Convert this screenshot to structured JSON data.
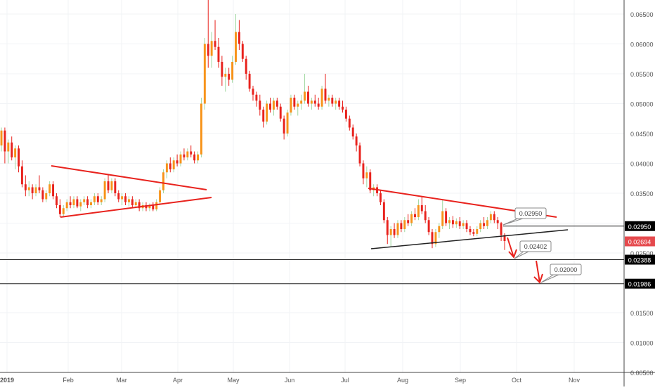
{
  "chart_data": {
    "type": "candlestick",
    "x_ticks": [
      "2019",
      "Feb",
      "Mar",
      "Apr",
      "May",
      "Jun",
      "Jul",
      "Aug",
      "Sep",
      "Oct",
      "Nov"
    ],
    "y_ticks": [
      "0.06500",
      "0.06000",
      "0.05500",
      "0.05000",
      "0.04500",
      "0.04000",
      "0.03500",
      "0.03000",
      "0.02500",
      "0.02000",
      "0.01500",
      "0.01000",
      "0.00500"
    ],
    "ylim": [
      0.0045,
      0.0678
    ],
    "price_tags": [
      {
        "label": "0.02950",
        "value": 0.0295,
        "bg": "#000000",
        "fg": "#ffffff"
      },
      {
        "label": "0.02694",
        "value": 0.02694,
        "bg": "#e5494d",
        "fg": "#ffffff"
      },
      {
        "label": "0.02388",
        "value": 0.02388,
        "bg": "#000000",
        "fg": "#ffffff"
      },
      {
        "label": "0.01986",
        "value": 0.01986,
        "bg": "#000000",
        "fg": "#ffffff"
      }
    ],
    "callouts": [
      {
        "label": "0.02950",
        "value": 0.0295
      },
      {
        "label": "0.02402",
        "value": 0.02402
      },
      {
        "label": "0.02000",
        "value": 0.02
      }
    ],
    "horizontal_levels": [
      0.0295,
      0.02388,
      0.01986
    ],
    "candles": [
      [
        0.043,
        0.046,
        0.042,
        0.0455
      ],
      [
        0.0455,
        0.046,
        0.04,
        0.042
      ],
      [
        0.042,
        0.044,
        0.04,
        0.0435
      ],
      [
        0.0435,
        0.0445,
        0.0405,
        0.041
      ],
      [
        0.041,
        0.043,
        0.039,
        0.0425
      ],
      [
        0.0425,
        0.043,
        0.0385,
        0.0395
      ],
      [
        0.0395,
        0.0405,
        0.036,
        0.0365
      ],
      [
        0.0365,
        0.038,
        0.0345,
        0.0355
      ],
      [
        0.0355,
        0.037,
        0.0345,
        0.036
      ],
      [
        0.036,
        0.0365,
        0.034,
        0.035
      ],
      [
        0.035,
        0.0365,
        0.0345,
        0.036
      ],
      [
        0.036,
        0.038,
        0.035,
        0.0355
      ],
      [
        0.0355,
        0.036,
        0.0335,
        0.034
      ],
      [
        0.034,
        0.0355,
        0.0335,
        0.035
      ],
      [
        0.035,
        0.037,
        0.0345,
        0.0365
      ],
      [
        0.0365,
        0.037,
        0.034,
        0.0345
      ],
      [
        0.0345,
        0.035,
        0.0325,
        0.033
      ],
      [
        0.033,
        0.034,
        0.031,
        0.0315
      ],
      [
        0.0315,
        0.033,
        0.031,
        0.0325
      ],
      [
        0.0325,
        0.034,
        0.032,
        0.0335
      ],
      [
        0.0335,
        0.0345,
        0.0325,
        0.033
      ],
      [
        0.033,
        0.0345,
        0.0325,
        0.034
      ],
      [
        0.034,
        0.0345,
        0.0325,
        0.0328
      ],
      [
        0.0328,
        0.034,
        0.032,
        0.0335
      ],
      [
        0.0335,
        0.0345,
        0.033,
        0.034
      ],
      [
        0.034,
        0.0345,
        0.0325,
        0.033
      ],
      [
        0.033,
        0.034,
        0.0325,
        0.0335
      ],
      [
        0.0335,
        0.035,
        0.033,
        0.0345
      ],
      [
        0.0345,
        0.035,
        0.033,
        0.0335
      ],
      [
        0.0335,
        0.0345,
        0.033,
        0.034
      ],
      [
        0.034,
        0.0375,
        0.0335,
        0.037
      ],
      [
        0.037,
        0.038,
        0.035,
        0.0355
      ],
      [
        0.0355,
        0.0375,
        0.035,
        0.037
      ],
      [
        0.037,
        0.0375,
        0.0345,
        0.035
      ],
      [
        0.035,
        0.0355,
        0.0335,
        0.034
      ],
      [
        0.034,
        0.035,
        0.033,
        0.0345
      ],
      [
        0.0345,
        0.035,
        0.033,
        0.0335
      ],
      [
        0.0335,
        0.0345,
        0.0328,
        0.034
      ],
      [
        0.034,
        0.0345,
        0.0325,
        0.033
      ],
      [
        0.033,
        0.034,
        0.0325,
        0.0335
      ],
      [
        0.0335,
        0.034,
        0.032,
        0.0325
      ],
      [
        0.0325,
        0.0335,
        0.032,
        0.033
      ],
      [
        0.033,
        0.0335,
        0.032,
        0.0325
      ],
      [
        0.0325,
        0.0333,
        0.032,
        0.033
      ],
      [
        0.033,
        0.0335,
        0.032,
        0.0323
      ],
      [
        0.0323,
        0.034,
        0.032,
        0.0335
      ],
      [
        0.0335,
        0.036,
        0.033,
        0.0355
      ],
      [
        0.0355,
        0.039,
        0.035,
        0.0385
      ],
      [
        0.0385,
        0.0405,
        0.0375,
        0.04
      ],
      [
        0.04,
        0.041,
        0.0385,
        0.039
      ],
      [
        0.039,
        0.041,
        0.0385,
        0.0405
      ],
      [
        0.0405,
        0.0415,
        0.0395,
        0.04
      ],
      [
        0.04,
        0.042,
        0.0395,
        0.0415
      ],
      [
        0.0415,
        0.0425,
        0.0405,
        0.041
      ],
      [
        0.041,
        0.0425,
        0.0405,
        0.042
      ],
      [
        0.042,
        0.043,
        0.041,
        0.0415
      ],
      [
        0.0415,
        0.042,
        0.04,
        0.0405
      ],
      [
        0.0405,
        0.042,
        0.04,
        0.0415
      ],
      [
        0.0415,
        0.051,
        0.041,
        0.05
      ],
      [
        0.05,
        0.061,
        0.049,
        0.06
      ],
      [
        0.06,
        0.068,
        0.056,
        0.058
      ],
      [
        0.058,
        0.062,
        0.056,
        0.0605
      ],
      [
        0.0605,
        0.064,
        0.059,
        0.0595
      ],
      [
        0.0595,
        0.061,
        0.056,
        0.057
      ],
      [
        0.057,
        0.058,
        0.053,
        0.0545
      ],
      [
        0.0545,
        0.056,
        0.052,
        0.055
      ],
      [
        0.055,
        0.056,
        0.053,
        0.054
      ],
      [
        0.054,
        0.058,
        0.0535,
        0.057
      ],
      [
        0.057,
        0.065,
        0.0565,
        0.062
      ],
      [
        0.062,
        0.064,
        0.059,
        0.06
      ],
      [
        0.06,
        0.0605,
        0.057,
        0.0575
      ],
      [
        0.0575,
        0.058,
        0.054,
        0.055
      ],
      [
        0.055,
        0.0555,
        0.052,
        0.0525
      ],
      [
        0.0525,
        0.053,
        0.0505,
        0.0515
      ],
      [
        0.0515,
        0.052,
        0.0495,
        0.0505
      ],
      [
        0.0505,
        0.0515,
        0.048,
        0.049
      ],
      [
        0.049,
        0.0495,
        0.046,
        0.047
      ],
      [
        0.047,
        0.0505,
        0.0465,
        0.05
      ],
      [
        0.05,
        0.051,
        0.0485,
        0.049
      ],
      [
        0.049,
        0.051,
        0.048,
        0.0505
      ],
      [
        0.0505,
        0.051,
        0.049,
        0.0495
      ],
      [
        0.0495,
        0.05,
        0.047,
        0.0475
      ],
      [
        0.0475,
        0.048,
        0.044,
        0.045
      ],
      [
        0.045,
        0.049,
        0.0445,
        0.0485
      ],
      [
        0.0485,
        0.0515,
        0.048,
        0.051
      ],
      [
        0.051,
        0.0515,
        0.049,
        0.0495
      ],
      [
        0.0495,
        0.0505,
        0.048,
        0.05
      ],
      [
        0.05,
        0.0515,
        0.049,
        0.0505
      ],
      [
        0.0505,
        0.055,
        0.05,
        0.052
      ],
      [
        0.052,
        0.053,
        0.0495,
        0.05
      ],
      [
        0.05,
        0.051,
        0.049,
        0.0505
      ],
      [
        0.0505,
        0.0515,
        0.0495,
        0.05
      ],
      [
        0.05,
        0.051,
        0.049,
        0.0495
      ],
      [
        0.0495,
        0.053,
        0.049,
        0.0525
      ],
      [
        0.0525,
        0.055,
        0.05,
        0.0505
      ],
      [
        0.0505,
        0.0515,
        0.0495,
        0.051
      ],
      [
        0.051,
        0.0515,
        0.0495,
        0.05
      ],
      [
        0.05,
        0.051,
        0.049,
        0.0505
      ],
      [
        0.0505,
        0.051,
        0.049,
        0.0495
      ],
      [
        0.0495,
        0.0505,
        0.0485,
        0.049
      ],
      [
        0.049,
        0.0495,
        0.047,
        0.0475
      ],
      [
        0.0475,
        0.048,
        0.0455,
        0.046
      ],
      [
        0.046,
        0.0465,
        0.044,
        0.0445
      ],
      [
        0.0445,
        0.045,
        0.042,
        0.043
      ],
      [
        0.043,
        0.0435,
        0.0395,
        0.04
      ],
      [
        0.04,
        0.0405,
        0.0365,
        0.0375
      ],
      [
        0.0375,
        0.0395,
        0.036,
        0.0385
      ],
      [
        0.0385,
        0.039,
        0.035,
        0.0355
      ],
      [
        0.0355,
        0.0365,
        0.0345,
        0.036
      ],
      [
        0.036,
        0.0365,
        0.0345,
        0.035
      ],
      [
        0.035,
        0.0355,
        0.033,
        0.0335
      ],
      [
        0.0335,
        0.034,
        0.03,
        0.0305
      ],
      [
        0.0305,
        0.031,
        0.0265,
        0.028
      ],
      [
        0.028,
        0.0295,
        0.026,
        0.029
      ],
      [
        0.029,
        0.03,
        0.0275,
        0.028
      ],
      [
        0.028,
        0.0305,
        0.0275,
        0.03
      ],
      [
        0.03,
        0.0305,
        0.0285,
        0.029
      ],
      [
        0.029,
        0.031,
        0.0285,
        0.0305
      ],
      [
        0.0305,
        0.0315,
        0.0295,
        0.03
      ],
      [
        0.03,
        0.032,
        0.0295,
        0.0315
      ],
      [
        0.0315,
        0.0325,
        0.0305,
        0.031
      ],
      [
        0.031,
        0.034,
        0.0305,
        0.033
      ],
      [
        0.033,
        0.0345,
        0.0315,
        0.032
      ],
      [
        0.032,
        0.033,
        0.03,
        0.0305
      ],
      [
        0.0305,
        0.031,
        0.028,
        0.0285
      ],
      [
        0.0285,
        0.029,
        0.0258,
        0.0265
      ],
      [
        0.0265,
        0.029,
        0.026,
        0.0285
      ],
      [
        0.0285,
        0.03,
        0.0275,
        0.0295
      ],
      [
        0.0295,
        0.034,
        0.029,
        0.032
      ],
      [
        0.032,
        0.0325,
        0.0295,
        0.03
      ],
      [
        0.03,
        0.031,
        0.029,
        0.0305
      ],
      [
        0.0305,
        0.0312,
        0.0292,
        0.0298
      ],
      [
        0.0298,
        0.0308,
        0.0292,
        0.0303
      ],
      [
        0.0303,
        0.031,
        0.029,
        0.0295
      ],
      [
        0.0295,
        0.0305,
        0.029,
        0.03
      ],
      [
        0.03,
        0.0305,
        0.0285,
        0.029
      ],
      [
        0.029,
        0.0295,
        0.028,
        0.0285
      ],
      [
        0.0285,
        0.029,
        0.0278,
        0.0282
      ],
      [
        0.0282,
        0.0295,
        0.0278,
        0.029
      ],
      [
        0.029,
        0.0305,
        0.0285,
        0.03
      ],
      [
        0.03,
        0.031,
        0.029,
        0.0295
      ],
      [
        0.0295,
        0.031,
        0.029,
        0.0305
      ],
      [
        0.0305,
        0.032,
        0.03,
        0.0315
      ],
      [
        0.0315,
        0.032,
        0.03,
        0.0305
      ],
      [
        0.0305,
        0.031,
        0.029,
        0.03
      ],
      [
        0.03,
        0.0302,
        0.027,
        0.028
      ],
      [
        0.028,
        0.0283,
        0.0255,
        0.027
      ]
    ]
  }
}
